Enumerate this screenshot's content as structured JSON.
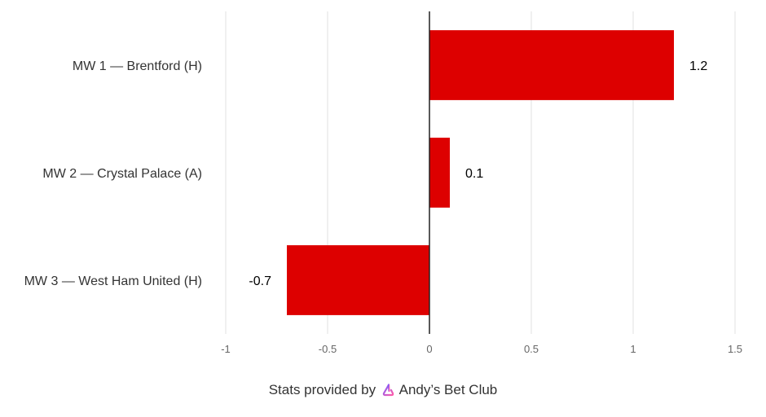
{
  "chart_data": {
    "type": "bar",
    "orientation": "horizontal",
    "categories": [
      "MW 1 — Brentford (H)",
      "MW 2 — Crystal Palace (A)",
      "MW 3 — West Ham United (H)"
    ],
    "values": [
      1.2,
      0.1,
      -0.7
    ],
    "value_labels": [
      "1.2",
      "0.1",
      "-0.7"
    ],
    "xlim": [
      -1,
      1.5
    ],
    "x_ticks": [
      -1,
      -0.5,
      0,
      0.5,
      1,
      1.5
    ],
    "x_tick_labels": [
      "-1",
      "-0.5",
      "0",
      "0.5",
      "1",
      "1.5"
    ],
    "title": "",
    "xlabel": "",
    "ylabel": "",
    "grid": "vertical",
    "bar_color": "#dd0000"
  },
  "footer": {
    "prefix": "Stats provided by",
    "brand": "Andy’s Bet Club",
    "brand_icon": "andys-bet-club-logo-icon"
  }
}
